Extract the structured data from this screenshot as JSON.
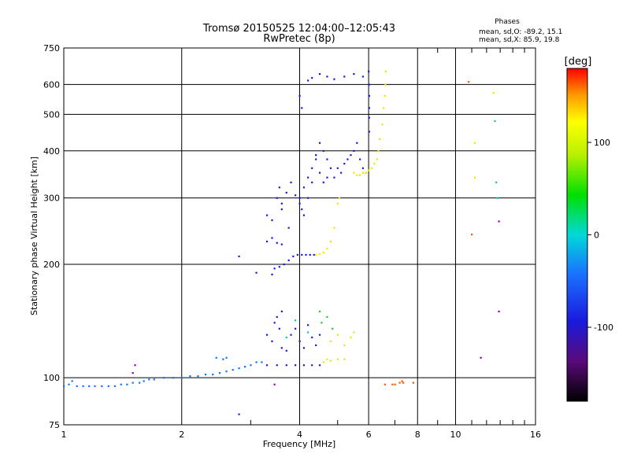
{
  "chart_data": {
    "type": "scatter",
    "title_line1": "Tromsø 20150525 12:04:00–12:05:43",
    "title_line2": "RwPretec (8p)",
    "xlabel": "Frequency [MHz]",
    "ylabel": "Stationary phase Virtual Height [km]",
    "x_scale": "log",
    "y_scale": "log",
    "xlim": [
      1,
      16
    ],
    "ylim": [
      75,
      750
    ],
    "x_ticks": [
      1,
      2,
      4,
      6,
      8,
      10,
      16
    ],
    "y_ticks": [
      75,
      100,
      200,
      300,
      400,
      500,
      600,
      750
    ],
    "grid": true,
    "phase_stats": {
      "heading": "Phases",
      "o_line": "mean, sd,O: -89.2, 15.1",
      "x_line": "mean, sd,X:  85.9, 19.8"
    },
    "colorbar": {
      "label": "[deg]",
      "range": [
        -180,
        180
      ],
      "ticks": [
        100,
        0,
        -100
      ]
    },
    "series": [
      {
        "color": "#1070ff",
        "points": [
          [
            1.0,
            95
          ],
          [
            1.03,
            96
          ],
          [
            1.05,
            98
          ],
          [
            1.08,
            95
          ],
          [
            1.12,
            95
          ],
          [
            1.16,
            95
          ],
          [
            1.2,
            95
          ],
          [
            1.25,
            95
          ],
          [
            1.3,
            95
          ],
          [
            1.35,
            95
          ],
          [
            1.4,
            96
          ],
          [
            1.45,
            96
          ],
          [
            1.5,
            97
          ],
          [
            1.56,
            97
          ],
          [
            1.6,
            98
          ],
          [
            1.65,
            99
          ],
          [
            1.7,
            99
          ],
          [
            1.8,
            100
          ],
          [
            1.9,
            100
          ],
          [
            2.0,
            100
          ],
          [
            2.1,
            101
          ],
          [
            2.2,
            101
          ],
          [
            2.3,
            102
          ],
          [
            2.4,
            102
          ],
          [
            2.5,
            103
          ],
          [
            2.6,
            104
          ],
          [
            2.7,
            105
          ],
          [
            2.8,
            106
          ],
          [
            2.9,
            107
          ],
          [
            3.0,
            108
          ],
          [
            3.1,
            110
          ],
          [
            3.2,
            110
          ],
          [
            2.45,
            113
          ],
          [
            2.55,
            112
          ],
          [
            2.6,
            113
          ]
        ]
      },
      {
        "color": "#1a1add",
        "points": [
          [
            3.3,
            108
          ],
          [
            3.5,
            108
          ],
          [
            3.7,
            108
          ],
          [
            3.9,
            108
          ],
          [
            4.1,
            108
          ],
          [
            4.3,
            108
          ],
          [
            4.5,
            108
          ],
          [
            3.3,
            130
          ],
          [
            3.4,
            125
          ],
          [
            3.45,
            140
          ],
          [
            3.55,
            135
          ],
          [
            3.6,
            120
          ],
          [
            3.7,
            118
          ],
          [
            3.8,
            130
          ],
          [
            3.9,
            135
          ],
          [
            4.0,
            125
          ],
          [
            4.1,
            120
          ],
          [
            4.2,
            138
          ],
          [
            4.3,
            128
          ],
          [
            4.4,
            122
          ],
          [
            4.5,
            130
          ],
          [
            3.5,
            145
          ],
          [
            3.6,
            150
          ],
          [
            3.4,
            188
          ],
          [
            3.45,
            195
          ],
          [
            3.55,
            197
          ],
          [
            3.65,
            200
          ],
          [
            3.75,
            205
          ],
          [
            3.85,
            210
          ],
          [
            3.95,
            212
          ],
          [
            4.05,
            212
          ],
          [
            4.15,
            212
          ],
          [
            4.25,
            212
          ],
          [
            4.35,
            212
          ],
          [
            3.3,
            230
          ],
          [
            3.4,
            235
          ],
          [
            3.5,
            228
          ],
          [
            3.6,
            226
          ],
          [
            3.5,
            300
          ],
          [
            3.55,
            320
          ],
          [
            3.6,
            290
          ],
          [
            3.7,
            310
          ],
          [
            3.8,
            330
          ],
          [
            3.9,
            305
          ],
          [
            4.0,
            300
          ],
          [
            4.1,
            320
          ],
          [
            4.2,
            340
          ],
          [
            4.3,
            360
          ],
          [
            4.4,
            380
          ],
          [
            4.5,
            350
          ],
          [
            4.6,
            330
          ],
          [
            4.7,
            340
          ],
          [
            4.8,
            360
          ],
          [
            4.9,
            340
          ],
          [
            5.0,
            360
          ],
          [
            5.1,
            350
          ],
          [
            5.2,
            370
          ],
          [
            5.3,
            380
          ],
          [
            5.4,
            390
          ],
          [
            5.5,
            400
          ],
          [
            5.6,
            420
          ],
          [
            5.7,
            380
          ],
          [
            5.8,
            360
          ],
          [
            5.9,
            350
          ],
          [
            4.0,
            290
          ],
          [
            4.05,
            280
          ],
          [
            4.1,
            270
          ],
          [
            4.2,
            300
          ],
          [
            4.3,
            330
          ],
          [
            4.4,
            390
          ],
          [
            4.5,
            420
          ],
          [
            4.6,
            400
          ],
          [
            4.7,
            380
          ],
          [
            3.3,
            270
          ],
          [
            3.4,
            262
          ],
          [
            3.6,
            280
          ],
          [
            3.75,
            250
          ],
          [
            4.2,
            615
          ],
          [
            4.3,
            625
          ],
          [
            4.5,
            640
          ],
          [
            4.7,
            630
          ],
          [
            4.9,
            620
          ],
          [
            5.2,
            630
          ],
          [
            5.5,
            640
          ],
          [
            5.8,
            630
          ],
          [
            6.0,
            650
          ],
          [
            6.02,
            600
          ],
          [
            6.02,
            560
          ],
          [
            6.02,
            520
          ],
          [
            6.02,
            490
          ],
          [
            6.02,
            450
          ],
          [
            4.0,
            560
          ],
          [
            4.05,
            520
          ],
          [
            3.1,
            190
          ],
          [
            2.8,
            210
          ],
          [
            2.8,
            80
          ]
        ]
      },
      {
        "color": "#e8e800",
        "points": [
          [
            4.4,
            212
          ],
          [
            4.5,
            213
          ],
          [
            4.6,
            215
          ],
          [
            4.7,
            220
          ],
          [
            4.8,
            230
          ],
          [
            4.9,
            250
          ],
          [
            5.0,
            290
          ],
          [
            5.05,
            300
          ],
          [
            5.5,
            350
          ],
          [
            5.6,
            345
          ],
          [
            5.7,
            345
          ],
          [
            5.8,
            350
          ],
          [
            5.9,
            350
          ],
          [
            6.0,
            355
          ],
          [
            6.1,
            360
          ],
          [
            6.2,
            370
          ],
          [
            6.3,
            380
          ],
          [
            6.35,
            400
          ],
          [
            6.4,
            430
          ],
          [
            6.5,
            470
          ],
          [
            6.55,
            520
          ],
          [
            6.6,
            560
          ],
          [
            6.62,
            600
          ],
          [
            6.63,
            650
          ],
          [
            4.6,
            110
          ],
          [
            4.7,
            112
          ],
          [
            4.8,
            111
          ],
          [
            5.0,
            112
          ],
          [
            5.2,
            112
          ],
          [
            4.8,
            125
          ],
          [
            5.0,
            130
          ],
          [
            5.2,
            122
          ],
          [
            5.4,
            128
          ],
          [
            5.5,
            132
          ],
          [
            12.5,
            570
          ],
          [
            11.2,
            420
          ],
          [
            11.2,
            340
          ]
        ]
      },
      {
        "color": "#30c030",
        "points": [
          [
            4.55,
            140
          ],
          [
            4.7,
            145
          ],
          [
            4.85,
            135
          ],
          [
            4.5,
            150
          ]
        ]
      },
      {
        "color": "#00c8c8",
        "points": [
          [
            3.7,
            128
          ],
          [
            4.2,
            132
          ],
          [
            3.9,
            142
          ],
          [
            12.6,
            480
          ],
          [
            12.7,
            330
          ],
          [
            12.8,
            300
          ]
        ]
      },
      {
        "color": "#ff5500",
        "points": [
          [
            7.0,
            96
          ],
          [
            7.2,
            97
          ],
          [
            7.3,
            98
          ],
          [
            7.35,
            97
          ],
          [
            7.8,
            97
          ],
          [
            6.6,
            96
          ],
          [
            6.9,
            96
          ],
          [
            10.8,
            610
          ],
          [
            11.0,
            240
          ]
        ]
      },
      {
        "color": "#8800aa",
        "points": [
          [
            1.5,
            103
          ],
          [
            1.52,
            108
          ],
          [
            3.45,
            96
          ],
          [
            12.9,
            260
          ],
          [
            12.9,
            150
          ],
          [
            11.6,
            113
          ]
        ]
      }
    ]
  }
}
